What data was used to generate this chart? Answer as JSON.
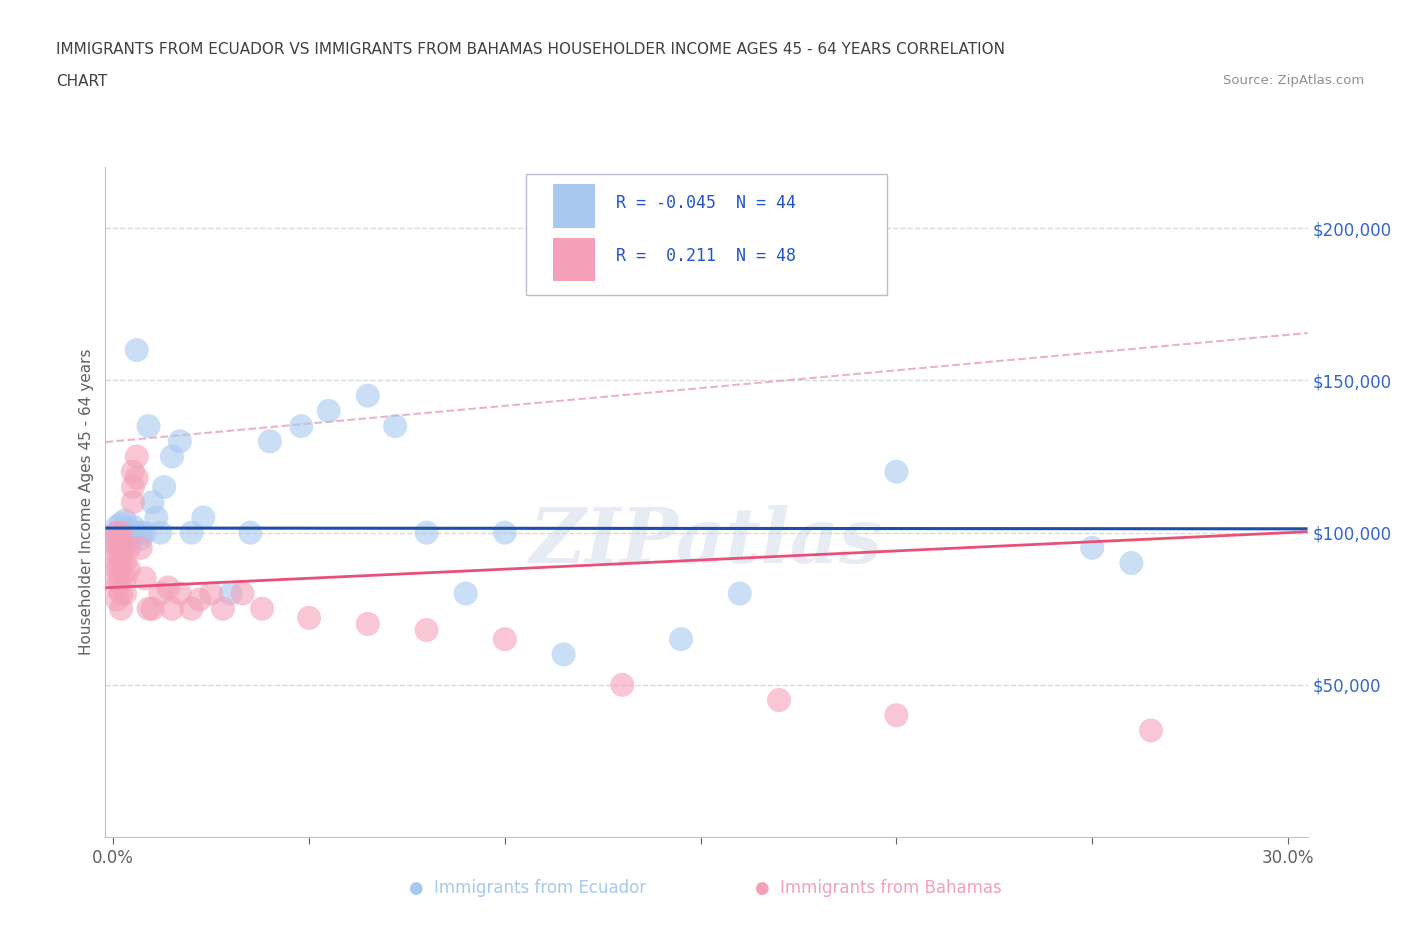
{
  "title_line1": "IMMIGRANTS FROM ECUADOR VS IMMIGRANTS FROM BAHAMAS HOUSEHOLDER INCOME AGES 45 - 64 YEARS CORRELATION",
  "title_line2": "CHART",
  "source_text": "Source: ZipAtlas.com",
  "ylabel": "Householder Income Ages 45 - 64 years",
  "watermark": "ZIPatlas",
  "ecuador_x": [
    0.001,
    0.001,
    0.001,
    0.001,
    0.002,
    0.002,
    0.002,
    0.003,
    0.003,
    0.003,
    0.004,
    0.004,
    0.005,
    0.005,
    0.006,
    0.006,
    0.007,
    0.007,
    0.008,
    0.009,
    0.01,
    0.011,
    0.012,
    0.013,
    0.015,
    0.017,
    0.02,
    0.023,
    0.03,
    0.035,
    0.04,
    0.048,
    0.055,
    0.065,
    0.072,
    0.08,
    0.09,
    0.1,
    0.115,
    0.145,
    0.16,
    0.2,
    0.25,
    0.26
  ],
  "ecuador_y": [
    100000,
    102000,
    98000,
    96000,
    100000,
    103000,
    97000,
    100000,
    104000,
    99000,
    101000,
    98000,
    100000,
    102000,
    160000,
    100000,
    100000,
    98000,
    100000,
    135000,
    110000,
    105000,
    100000,
    115000,
    125000,
    130000,
    100000,
    105000,
    80000,
    100000,
    130000,
    135000,
    140000,
    145000,
    135000,
    100000,
    80000,
    100000,
    60000,
    65000,
    80000,
    120000,
    95000,
    90000
  ],
  "bahamas_x": [
    0.001,
    0.001,
    0.001,
    0.001,
    0.001,
    0.001,
    0.001,
    0.001,
    0.001,
    0.002,
    0.002,
    0.002,
    0.002,
    0.002,
    0.002,
    0.003,
    0.003,
    0.003,
    0.003,
    0.004,
    0.004,
    0.005,
    0.005,
    0.005,
    0.006,
    0.006,
    0.007,
    0.008,
    0.009,
    0.01,
    0.012,
    0.014,
    0.015,
    0.017,
    0.02,
    0.022,
    0.025,
    0.028,
    0.033,
    0.038,
    0.05,
    0.065,
    0.08,
    0.1,
    0.13,
    0.17,
    0.2,
    0.265
  ],
  "bahamas_y": [
    100000,
    98000,
    95000,
    93000,
    90000,
    88000,
    85000,
    82000,
    78000,
    100000,
    95000,
    90000,
    85000,
    80000,
    75000,
    95000,
    90000,
    85000,
    80000,
    95000,
    88000,
    120000,
    115000,
    110000,
    125000,
    118000,
    95000,
    85000,
    75000,
    75000,
    80000,
    82000,
    75000,
    80000,
    75000,
    78000,
    80000,
    75000,
    80000,
    75000,
    72000,
    70000,
    68000,
    65000,
    50000,
    45000,
    40000,
    35000
  ],
  "ecuador_R": -0.045,
  "ecuador_N": 44,
  "bahamas_R": 0.211,
  "bahamas_N": 48,
  "ecuador_color": "#a8c8f0",
  "bahamas_color": "#f4a0b8",
  "ecuador_line_color": "#1a4faa",
  "bahamas_line_color": "#e8507a",
  "trendline_dash_color": "#e8a0b8",
  "ylim_min": 0,
  "ylim_max": 220000,
  "xlim_min": -0.002,
  "xlim_max": 0.305,
  "yticks": [
    50000,
    100000,
    150000,
    200000
  ],
  "xtick_labels": [
    "0.0%",
    "",
    "",
    "",
    "",
    "",
    "30.0%"
  ],
  "xtick_positions": [
    0.0,
    0.05,
    0.1,
    0.15,
    0.2,
    0.25,
    0.3
  ],
  "bg_color": "#ffffff",
  "grid_color": "#d8d8e0",
  "title_color": "#404040",
  "source_color": "#909090",
  "legend_R_color": "#2255cc",
  "ytick_color": "#3366cc",
  "axis_label_color": "#606060",
  "spine_color": "#c0c0c8"
}
